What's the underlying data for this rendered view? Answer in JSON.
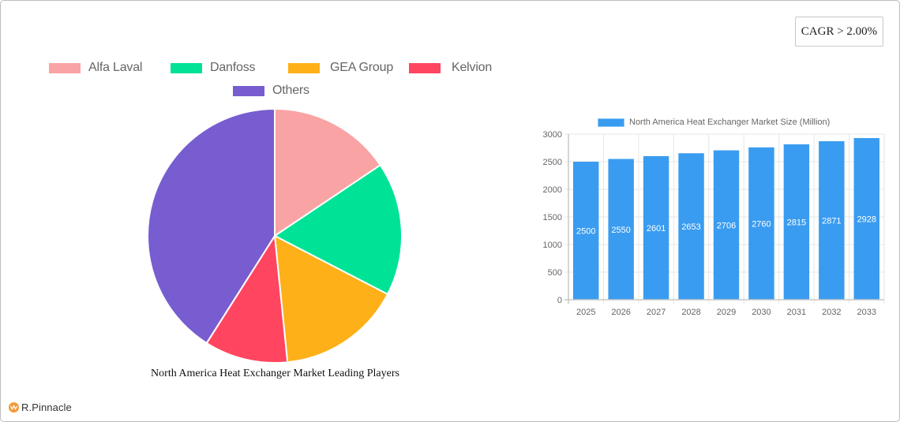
{
  "badge": {
    "cagr_label": "CAGR > 2.00%"
  },
  "brand": {
    "logo_text": "R.Pinnacle"
  },
  "chart_data": [
    {
      "type": "pie",
      "title": "North America Heat Exchanger Market Leading Players",
      "legend_position": "top",
      "categories": [
        "Alfa Laval",
        "Danfoss",
        "GEA Group",
        "Kelvion",
        "Others"
      ],
      "values": [
        15.6,
        17.0,
        15.8,
        10.6,
        41.0
      ],
      "colors": [
        "#f9a3a4",
        "#00e396",
        "#feb019",
        "#ff4560",
        "#775dd0"
      ]
    },
    {
      "type": "bar",
      "title": "",
      "legend": [
        "North America Heat Exchanger Market Size (Million)"
      ],
      "legend_position": "top",
      "categories": [
        "2025",
        "2026",
        "2027",
        "2028",
        "2029",
        "2030",
        "2031",
        "2032",
        "2033"
      ],
      "series": [
        {
          "name": "North America Heat Exchanger Market Size (Million)",
          "values": [
            2500,
            2550,
            2601,
            2653,
            2706,
            2760,
            2815,
            2871,
            2928
          ],
          "color": "#3a9cf0"
        }
      ],
      "xlabel": "",
      "ylabel": "",
      "ylim": [
        0,
        3000
      ],
      "yticks": [
        0,
        500,
        1000,
        1500,
        2000,
        2500,
        3000
      ],
      "grid": true,
      "data_labels": true
    }
  ],
  "pie": {
    "title": "North America Heat Exchanger Market Leading Players",
    "legend": [
      {
        "label": "Alfa Laval",
        "color": "#f9a3a4"
      },
      {
        "label": "Danfoss",
        "color": "#00e396"
      },
      {
        "label": "GEA Group",
        "color": "#feb019"
      },
      {
        "label": "Kelvion",
        "color": "#ff4560"
      },
      {
        "label": "Others",
        "color": "#775dd0"
      }
    ]
  },
  "bar": {
    "legend_label": "North America Heat Exchanger Market Size (Million)",
    "yticks": [
      "0",
      "500",
      "1000",
      "1500",
      "2000",
      "2500",
      "3000"
    ],
    "years": [
      "2025",
      "2026",
      "2027",
      "2028",
      "2029",
      "2030",
      "2031",
      "2032",
      "2033"
    ],
    "values": [
      "2500",
      "2550",
      "2601",
      "2653",
      "2706",
      "2760",
      "2815",
      "2871",
      "2928"
    ]
  }
}
